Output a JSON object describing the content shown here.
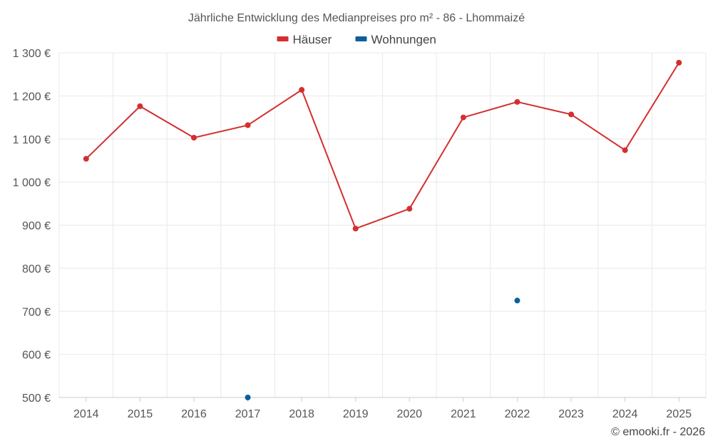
{
  "chart_data": {
    "type": "line",
    "title": "Jährliche Entwicklung des Medianpreises pro m² - 86 - Lhommaizé",
    "categories": [
      "2014",
      "2015",
      "2016",
      "2017",
      "2018",
      "2019",
      "2020",
      "2021",
      "2022",
      "2023",
      "2024",
      "2025"
    ],
    "y_tick_labels": [
      "500 €",
      "600 €",
      "700 €",
      "800 €",
      "900 €",
      "1 000 €",
      "1 100 €",
      "1 200 €",
      "1 300 €"
    ],
    "ylim": [
      500,
      1300
    ],
    "y_tick_step": 100,
    "grid": true,
    "legend_position": "top-center",
    "series": [
      {
        "name": "Häuser",
        "color": "#d32f2f",
        "values": [
          1054,
          1176,
          1103,
          1132,
          1214,
          892,
          938,
          1150,
          1186,
          1157,
          1074,
          1277
        ]
      },
      {
        "name": "Wohnungen",
        "color": "#0d5f9c",
        "values": [
          null,
          null,
          null,
          500,
          null,
          null,
          null,
          null,
          725,
          null,
          null,
          null
        ]
      }
    ]
  },
  "credit": "© emooki.fr - 2026"
}
